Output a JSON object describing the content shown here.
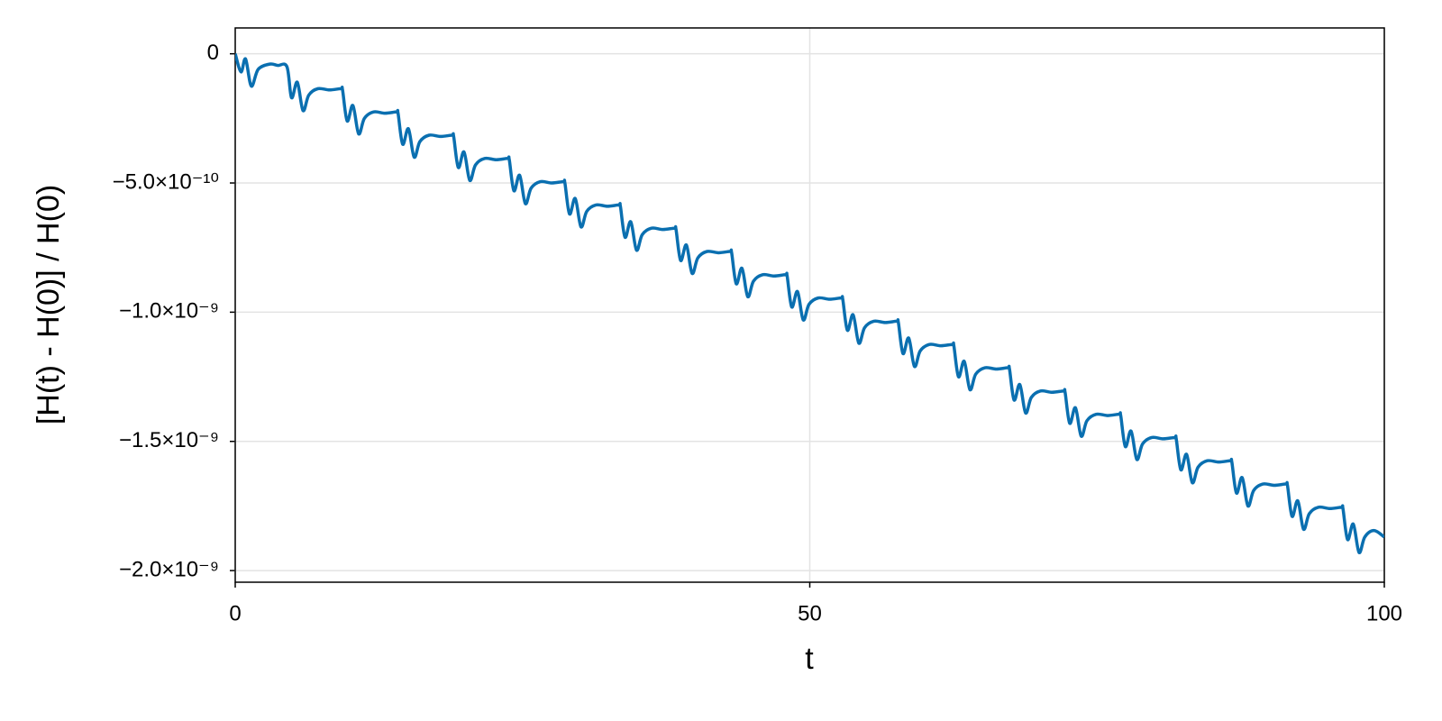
{
  "chart_data": {
    "type": "line",
    "xlabel": "t",
    "ylabel": "[H(t) - H(0)] / H(0)",
    "xlim": [
      0,
      100
    ],
    "ylim": [
      -2.045e-09,
      1e-10
    ],
    "xticks": [
      0,
      50,
      100
    ],
    "yticks": [
      0,
      {
        "value": -5e-10,
        "label": "−5.0×10⁻¹⁰"
      },
      {
        "value": -1e-09,
        "label": "−1.0×10⁻⁹"
      },
      {
        "value": -1.5e-09,
        "label": "−1.5×10⁻⁹"
      },
      {
        "value": -2e-09,
        "label": "−2.0×10⁻⁹"
      }
    ],
    "grid": true,
    "series": [
      {
        "color": "#0a6fb0",
        "x": [
          0,
          0.5,
          0.9,
          1.4,
          2.0,
          3.0,
          3.7,
          4.5,
          4.9,
          5.4,
          5.9,
          6.4,
          7.2,
          8.2,
          9.2,
          9.34,
          9.74,
          10.24,
          10.74,
          11.24,
          12.04,
          13.04,
          14.04,
          14.17,
          14.57,
          15.07,
          15.57,
          16.07,
          16.87,
          17.87,
          18.87,
          19.01,
          19.41,
          19.91,
          20.41,
          20.91,
          21.71,
          22.71,
          23.71,
          23.85,
          24.25,
          24.75,
          25.25,
          25.75,
          26.55,
          27.55,
          28.55,
          28.69,
          29.09,
          29.59,
          30.09,
          30.59,
          31.39,
          32.39,
          33.39,
          33.52,
          33.92,
          34.42,
          34.92,
          35.42,
          36.22,
          37.22,
          38.22,
          38.36,
          38.76,
          39.26,
          39.76,
          40.26,
          41.06,
          42.06,
          43.06,
          43.2,
          43.6,
          44.1,
          44.6,
          45.1,
          45.9,
          46.9,
          47.9,
          48.03,
          48.43,
          48.93,
          49.43,
          49.93,
          50.73,
          51.73,
          52.73,
          52.87,
          53.27,
          53.77,
          54.27,
          54.77,
          55.57,
          56.57,
          57.57,
          57.71,
          58.11,
          58.61,
          59.11,
          59.61,
          60.41,
          61.41,
          62.41,
          62.54,
          62.94,
          63.44,
          63.94,
          64.44,
          65.24,
          66.24,
          67.24,
          67.38,
          67.78,
          68.28,
          68.78,
          69.28,
          70.08,
          71.08,
          72.08,
          72.22,
          72.62,
          73.12,
          73.62,
          74.12,
          74.92,
          75.92,
          76.92,
          77.06,
          77.46,
          77.96,
          78.46,
          78.96,
          79.76,
          80.76,
          81.76,
          81.89,
          82.29,
          82.79,
          83.29,
          83.79,
          84.59,
          85.59,
          86.59,
          86.73,
          87.13,
          87.63,
          88.13,
          88.63,
          89.43,
          90.43,
          91.43,
          91.57,
          91.97,
          92.47,
          92.97,
          93.47,
          94.27,
          95.27,
          96.27,
          96.4,
          96.8,
          97.3,
          97.8,
          98.3,
          99.1,
          100
        ],
        "values": [
          0,
          -7e-11,
          -2e-11,
          -1.25e-10,
          -6e-11,
          -4e-11,
          -4.5e-11,
          -5e-11,
          -1.7e-10,
          -1.1e-10,
          -2.2e-10,
          -1.6e-10,
          -1.35e-10,
          -1.4e-10,
          -1.35e-10,
          -1.4e-10,
          -2.6e-10,
          -2e-10,
          -3.1e-10,
          -2.5e-10,
          -2.25e-10,
          -2.3e-10,
          -2.25e-10,
          -2.3e-10,
          -3.5e-10,
          -2.9e-10,
          -4e-10,
          -3.4e-10,
          -3.15e-10,
          -3.2e-10,
          -3.15e-10,
          -3.2e-10,
          -4.4e-10,
          -3.8e-10,
          -4.9e-10,
          -4.3e-10,
          -4.05e-10,
          -4.1e-10,
          -4.05e-10,
          -4.1e-10,
          -5.3e-10,
          -4.7e-10,
          -5.8e-10,
          -5.2e-10,
          -4.95e-10,
          -5e-10,
          -4.95e-10,
          -5e-10,
          -6.2e-10,
          -5.6e-10,
          -6.7e-10,
          -6.1e-10,
          -5.85e-10,
          -5.9e-10,
          -5.85e-10,
          -5.9e-10,
          -7.1e-10,
          -6.5e-10,
          -7.6e-10,
          -7e-10,
          -6.75e-10,
          -6.8e-10,
          -6.75e-10,
          -6.8e-10,
          -8e-10,
          -7.4e-10,
          -8.5e-10,
          -7.9e-10,
          -7.65e-10,
          -7.7e-10,
          -7.65e-10,
          -7.7e-10,
          -8.9e-10,
          -8.3e-10,
          -9.4e-10,
          -8.8e-10,
          -8.55e-10,
          -8.6e-10,
          -8.55e-10,
          -8.6e-10,
          -9.8e-10,
          -9.2e-10,
          -1.03e-09,
          -9.7e-10,
          -9.45e-10,
          -9.5e-10,
          -9.45e-10,
          -9.5e-10,
          -1.07e-09,
          -1.01e-09,
          -1.12e-09,
          -1.06e-09,
          -1.035e-09,
          -1.04e-09,
          -1.035e-09,
          -1.04e-09,
          -1.16e-09,
          -1.1e-09,
          -1.21e-09,
          -1.15e-09,
          -1.125e-09,
          -1.13e-09,
          -1.125e-09,
          -1.13e-09,
          -1.25e-09,
          -1.19e-09,
          -1.3e-09,
          -1.24e-09,
          -1.215e-09,
          -1.22e-09,
          -1.215e-09,
          -1.22e-09,
          -1.34e-09,
          -1.28e-09,
          -1.39e-09,
          -1.33e-09,
          -1.305e-09,
          -1.31e-09,
          -1.305e-09,
          -1.31e-09,
          -1.43e-09,
          -1.37e-09,
          -1.48e-09,
          -1.42e-09,
          -1.395e-09,
          -1.4e-09,
          -1.395e-09,
          -1.4e-09,
          -1.52e-09,
          -1.46e-09,
          -1.57e-09,
          -1.51e-09,
          -1.485e-09,
          -1.49e-09,
          -1.485e-09,
          -1.49e-09,
          -1.61e-09,
          -1.55e-09,
          -1.66e-09,
          -1.6e-09,
          -1.575e-09,
          -1.58e-09,
          -1.575e-09,
          -1.58e-09,
          -1.7e-09,
          -1.64e-09,
          -1.75e-09,
          -1.69e-09,
          -1.665e-09,
          -1.67e-09,
          -1.665e-09,
          -1.67e-09,
          -1.79e-09,
          -1.73e-09,
          -1.84e-09,
          -1.78e-09,
          -1.755e-09,
          -1.76e-09,
          -1.755e-09,
          -1.76e-09,
          -1.88e-09,
          -1.82e-09,
          -1.93e-09,
          -1.87e-09,
          -1.845e-09,
          -1.87e-09
        ]
      }
    ]
  }
}
